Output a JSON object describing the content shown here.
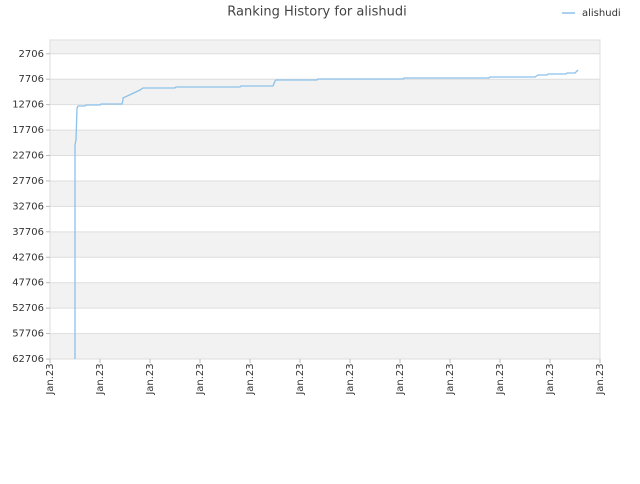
{
  "chart_data": {
    "type": "line",
    "title": "Ranking History for alishudi",
    "x": [
      0.5,
      0.5,
      0.52,
      0.54,
      0.56,
      0.7,
      0.72,
      1.0,
      1.02,
      1.44,
      1.46,
      1.46,
      1.8,
      1.86,
      2.5,
      2.52,
      3.8,
      3.82,
      4.46,
      4.5,
      4.52,
      5.34,
      5.36,
      7.06,
      7.08,
      8.78,
      8.8,
      9.7,
      9.76,
      9.94,
      9.96,
      10.32,
      10.34,
      10.5,
      10.56
    ],
    "series": [
      {
        "name": "alishudi",
        "color": "#8cc1ea",
        "values": [
          62706,
          20640,
          19660,
          13370,
          12970,
          12970,
          12780,
          12780,
          12580,
          12580,
          11790,
          11400,
          9830,
          9440,
          9440,
          9240,
          9240,
          9040,
          9040,
          8060,
          7860,
          7860,
          7670,
          7670,
          7470,
          7470,
          7270,
          7270,
          6880,
          6880,
          6680,
          6680,
          6490,
          6490,
          5900
        ]
      }
    ],
    "xlim": [
      0,
      11
    ],
    "xticks": [
      {
        "value": 0,
        "label": "Jan.23"
      },
      {
        "value": 1,
        "label": "Jan.23"
      },
      {
        "value": 2,
        "label": "Jan.23"
      },
      {
        "value": 3,
        "label": "Jan.23"
      },
      {
        "value": 4,
        "label": "Jan.23"
      },
      {
        "value": 5,
        "label": "Jan.23"
      },
      {
        "value": 6,
        "label": "Jan.23"
      },
      {
        "value": 7,
        "label": "Jan.23"
      },
      {
        "value": 8,
        "label": "Jan.23"
      },
      {
        "value": 9,
        "label": "Jan.23"
      },
      {
        "value": 10,
        "label": "Jan.23"
      },
      {
        "value": 11,
        "label": "Jan.23"
      }
    ],
    "ylim": [
      62706,
      0
    ],
    "yticks": [
      2706,
      7706,
      12706,
      17706,
      22706,
      27706,
      32706,
      37706,
      42706,
      47706,
      52706,
      57706,
      62706
    ],
    "grid": true,
    "legend": "top-right"
  }
}
